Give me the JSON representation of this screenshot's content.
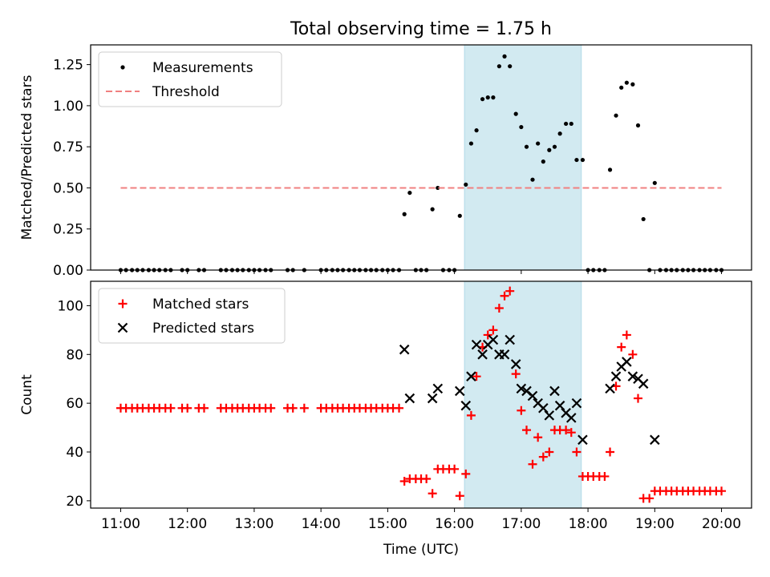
{
  "figure": {
    "title": "Total observing time = 1.75 h"
  },
  "chart_data": [
    {
      "type": "scatter",
      "ylabel": "Matched/Predicted stars",
      "xlabel": "",
      "xlim": [
        10.55,
        20.45
      ],
      "ylim": [
        0,
        1.37
      ],
      "yticks": [
        0.0,
        0.25,
        0.5,
        0.75,
        1.0,
        1.25
      ],
      "ytick_labels": [
        "0.00",
        "0.25",
        "0.50",
        "0.75",
        "1.00",
        "1.25"
      ],
      "shaded_interval": {
        "x0": 16.15,
        "x1": 17.9,
        "color": "#add8e6"
      },
      "legend": {
        "position": "top-left",
        "entries": [
          "Measurements",
          "Threshold"
        ]
      },
      "series": [
        {
          "name": "Measurements",
          "marker": "dot",
          "color": "#000000",
          "points": [
            [
              11.0,
              0
            ],
            [
              11.08,
              0
            ],
            [
              11.17,
              0
            ],
            [
              11.25,
              0
            ],
            [
              11.33,
              0
            ],
            [
              11.42,
              0
            ],
            [
              11.5,
              0
            ],
            [
              11.58,
              0
            ],
            [
              11.67,
              0
            ],
            [
              11.75,
              0
            ],
            [
              11.92,
              0
            ],
            [
              12.0,
              0
            ],
            [
              12.17,
              0
            ],
            [
              12.25,
              0
            ],
            [
              12.5,
              0
            ],
            [
              12.58,
              0
            ],
            [
              12.67,
              0
            ],
            [
              12.75,
              0
            ],
            [
              12.83,
              0
            ],
            [
              12.92,
              0
            ],
            [
              13.0,
              0
            ],
            [
              13.08,
              0
            ],
            [
              13.17,
              0
            ],
            [
              13.25,
              0
            ],
            [
              13.5,
              0
            ],
            [
              13.58,
              0
            ],
            [
              13.75,
              0
            ],
            [
              14.0,
              0
            ],
            [
              14.08,
              0
            ],
            [
              14.17,
              0
            ],
            [
              14.25,
              0
            ],
            [
              14.33,
              0
            ],
            [
              14.42,
              0
            ],
            [
              14.5,
              0
            ],
            [
              14.58,
              0
            ],
            [
              14.67,
              0
            ],
            [
              14.75,
              0
            ],
            [
              14.83,
              0
            ],
            [
              14.92,
              0
            ],
            [
              15.0,
              0
            ],
            [
              15.08,
              0
            ],
            [
              15.17,
              0
            ],
            [
              15.25,
              0.34
            ],
            [
              15.33,
              0.47
            ],
            [
              15.42,
              0
            ],
            [
              15.5,
              0
            ],
            [
              15.58,
              0
            ],
            [
              15.67,
              0.37
            ],
            [
              15.75,
              0.5
            ],
            [
              15.83,
              0
            ],
            [
              15.92,
              0
            ],
            [
              16.0,
              0
            ],
            [
              16.08,
              0.33
            ],
            [
              16.17,
              0.52
            ],
            [
              16.25,
              0.77
            ],
            [
              16.33,
              0.85
            ],
            [
              16.42,
              1.04
            ],
            [
              16.5,
              1.05
            ],
            [
              16.58,
              1.05
            ],
            [
              16.67,
              1.24
            ],
            [
              16.75,
              1.3
            ],
            [
              16.83,
              1.24
            ],
            [
              16.92,
              0.95
            ],
            [
              17.0,
              0.87
            ],
            [
              17.08,
              0.75
            ],
            [
              17.17,
              0.55
            ],
            [
              17.25,
              0.77
            ],
            [
              17.33,
              0.66
            ],
            [
              17.42,
              0.73
            ],
            [
              17.5,
              0.75
            ],
            [
              17.58,
              0.83
            ],
            [
              17.67,
              0.89
            ],
            [
              17.75,
              0.89
            ],
            [
              17.83,
              0.67
            ],
            [
              17.92,
              0.67
            ],
            [
              18.0,
              0
            ],
            [
              18.08,
              0
            ],
            [
              18.17,
              0
            ],
            [
              18.25,
              0
            ],
            [
              18.33,
              0.61
            ],
            [
              18.42,
              0.94
            ],
            [
              18.5,
              1.11
            ],
            [
              18.58,
              1.14
            ],
            [
              18.67,
              1.13
            ],
            [
              18.75,
              0.88
            ],
            [
              18.83,
              0.31
            ],
            [
              18.92,
              0
            ],
            [
              19.0,
              0.53
            ],
            [
              19.08,
              0
            ],
            [
              19.17,
              0
            ],
            [
              19.25,
              0
            ],
            [
              19.33,
              0
            ],
            [
              19.42,
              0
            ],
            [
              19.5,
              0
            ],
            [
              19.58,
              0
            ],
            [
              19.67,
              0
            ],
            [
              19.75,
              0
            ],
            [
              19.83,
              0
            ],
            [
              19.92,
              0
            ],
            [
              20.0,
              0
            ]
          ]
        },
        {
          "name": "Threshold",
          "style": "dashed-line",
          "color": "#f08080",
          "points": [
            [
              11.0,
              0.5
            ],
            [
              20.0,
              0.5
            ]
          ]
        }
      ]
    },
    {
      "type": "scatter",
      "ylabel": "Count",
      "xlabel": "Time (UTC)",
      "xlim": [
        10.55,
        20.45
      ],
      "ylim": [
        17,
        110
      ],
      "xticks": [
        11,
        12,
        13,
        14,
        15,
        16,
        17,
        18,
        19,
        20
      ],
      "xtick_labels": [
        "11:00",
        "12:00",
        "13:00",
        "14:00",
        "15:00",
        "16:00",
        "17:00",
        "18:00",
        "19:00",
        "20:00"
      ],
      "yticks": [
        20,
        40,
        60,
        80,
        100
      ],
      "ytick_labels": [
        "20",
        "40",
        "60",
        "80",
        "100"
      ],
      "shaded_interval": {
        "x0": 16.15,
        "x1": 17.9,
        "color": "#add8e6"
      },
      "legend": {
        "position": "top-left",
        "entries": [
          "Matched stars",
          "Predicted stars"
        ]
      },
      "series": [
        {
          "name": "Matched stars",
          "marker": "plus",
          "color": "#ff0000",
          "points": [
            [
              11.0,
              58
            ],
            [
              11.08,
              58
            ],
            [
              11.17,
              58
            ],
            [
              11.25,
              58
            ],
            [
              11.33,
              58
            ],
            [
              11.42,
              58
            ],
            [
              11.5,
              58
            ],
            [
              11.58,
              58
            ],
            [
              11.67,
              58
            ],
            [
              11.75,
              58
            ],
            [
              11.92,
              58
            ],
            [
              12.0,
              58
            ],
            [
              12.17,
              58
            ],
            [
              12.25,
              58
            ],
            [
              12.5,
              58
            ],
            [
              12.58,
              58
            ],
            [
              12.67,
              58
            ],
            [
              12.75,
              58
            ],
            [
              12.83,
              58
            ],
            [
              12.92,
              58
            ],
            [
              13.0,
              58
            ],
            [
              13.08,
              58
            ],
            [
              13.17,
              58
            ],
            [
              13.25,
              58
            ],
            [
              13.5,
              58
            ],
            [
              13.58,
              58
            ],
            [
              13.75,
              58
            ],
            [
              14.0,
              58
            ],
            [
              14.08,
              58
            ],
            [
              14.17,
              58
            ],
            [
              14.25,
              58
            ],
            [
              14.33,
              58
            ],
            [
              14.42,
              58
            ],
            [
              14.5,
              58
            ],
            [
              14.58,
              58
            ],
            [
              14.67,
              58
            ],
            [
              14.75,
              58
            ],
            [
              14.83,
              58
            ],
            [
              14.92,
              58
            ],
            [
              15.0,
              58
            ],
            [
              15.08,
              58
            ],
            [
              15.17,
              58
            ],
            [
              15.25,
              28
            ],
            [
              15.33,
              29
            ],
            [
              15.42,
              29
            ],
            [
              15.5,
              29
            ],
            [
              15.58,
              29
            ],
            [
              15.67,
              23
            ],
            [
              15.75,
              33
            ],
            [
              15.83,
              33
            ],
            [
              15.92,
              33
            ],
            [
              16.0,
              33
            ],
            [
              16.08,
              22
            ],
            [
              16.17,
              31
            ],
            [
              16.25,
              55
            ],
            [
              16.33,
              71
            ],
            [
              16.42,
              83
            ],
            [
              16.5,
              88
            ],
            [
              16.58,
              90
            ],
            [
              16.67,
              99
            ],
            [
              16.75,
              104
            ],
            [
              16.83,
              106
            ],
            [
              16.92,
              72
            ],
            [
              17.0,
              57
            ],
            [
              17.08,
              49
            ],
            [
              17.17,
              35
            ],
            [
              17.25,
              46
            ],
            [
              17.33,
              38
            ],
            [
              17.42,
              40
            ],
            [
              17.5,
              49
            ],
            [
              17.58,
              49
            ],
            [
              17.67,
              49
            ],
            [
              17.75,
              48
            ],
            [
              17.83,
              40
            ],
            [
              17.92,
              30
            ],
            [
              18.0,
              30
            ],
            [
              18.08,
              30
            ],
            [
              18.17,
              30
            ],
            [
              18.25,
              30
            ],
            [
              18.33,
              40
            ],
            [
              18.42,
              67
            ],
            [
              18.5,
              83
            ],
            [
              18.58,
              88
            ],
            [
              18.67,
              80
            ],
            [
              18.75,
              62
            ],
            [
              18.83,
              21
            ],
            [
              18.92,
              21
            ],
            [
              19.0,
              24
            ],
            [
              19.08,
              24
            ],
            [
              19.17,
              24
            ],
            [
              19.25,
              24
            ],
            [
              19.33,
              24
            ],
            [
              19.42,
              24
            ],
            [
              19.5,
              24
            ],
            [
              19.58,
              24
            ],
            [
              19.67,
              24
            ],
            [
              19.75,
              24
            ],
            [
              19.83,
              24
            ],
            [
              19.92,
              24
            ],
            [
              20.0,
              24
            ]
          ]
        },
        {
          "name": "Predicted stars",
          "marker": "x",
          "color": "#000000",
          "points": [
            [
              15.25,
              82
            ],
            [
              15.33,
              62
            ],
            [
              15.67,
              62
            ],
            [
              15.75,
              66
            ],
            [
              16.08,
              65
            ],
            [
              16.17,
              59
            ],
            [
              16.25,
              71
            ],
            [
              16.33,
              84
            ],
            [
              16.42,
              80
            ],
            [
              16.5,
              84
            ],
            [
              16.58,
              86
            ],
            [
              16.67,
              80
            ],
            [
              16.75,
              80
            ],
            [
              16.83,
              86
            ],
            [
              16.92,
              76
            ],
            [
              17.0,
              66
            ],
            [
              17.08,
              65
            ],
            [
              17.17,
              63
            ],
            [
              17.25,
              60
            ],
            [
              17.33,
              58
            ],
            [
              17.42,
              55
            ],
            [
              17.5,
              65
            ],
            [
              17.58,
              59
            ],
            [
              17.67,
              56
            ],
            [
              17.75,
              54
            ],
            [
              17.83,
              60
            ],
            [
              17.92,
              45
            ],
            [
              18.33,
              66
            ],
            [
              18.42,
              71
            ],
            [
              18.5,
              75
            ],
            [
              18.58,
              77
            ],
            [
              18.67,
              71
            ],
            [
              18.75,
              70
            ],
            [
              18.83,
              68
            ],
            [
              19.0,
              45
            ]
          ]
        }
      ]
    }
  ]
}
